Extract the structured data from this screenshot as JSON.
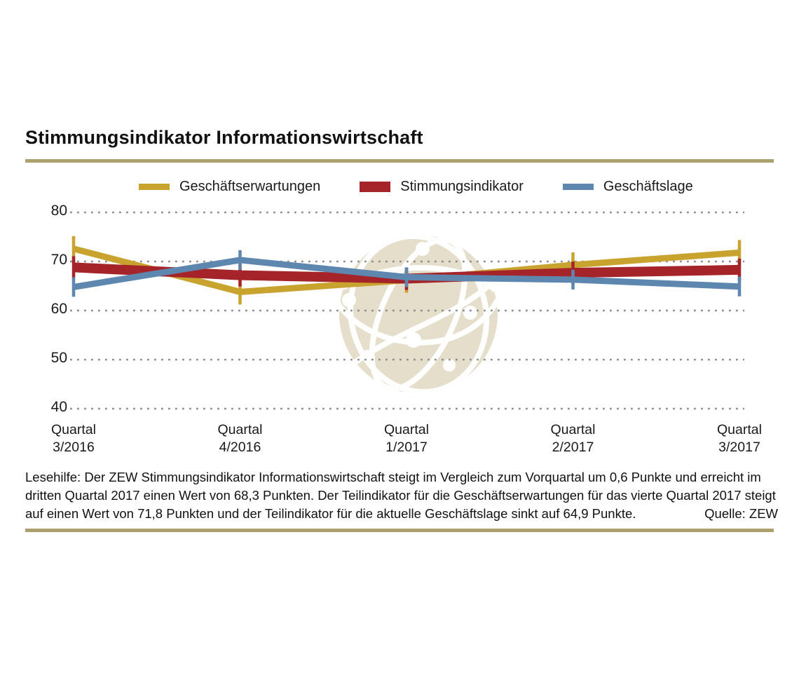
{
  "title": "Stimmungsindikator Informationswirtschaft",
  "accent_rule_color": "#aba06e",
  "chart_data": {
    "type": "line",
    "title": "Stimmungsindikator Informationswirtschaft",
    "categories": [
      "Quartal 3/2016",
      "Quartal 4/2016",
      "Quartal 1/2017",
      "Quartal 2/2017",
      "Quartal 3/2017"
    ],
    "x_labels": [
      [
        "Quartal",
        "3/2016"
      ],
      [
        "Quartal",
        "4/2016"
      ],
      [
        "Quartal",
        "1/2017"
      ],
      [
        "Quartal",
        "2/2017"
      ],
      [
        "Quartal",
        "3/2017"
      ]
    ],
    "series": [
      {
        "name": "Geschäftserwartungen",
        "color": "#c8a32e",
        "values": [
          72.6,
          63.8,
          66.2,
          69.3,
          71.8
        ]
      },
      {
        "name": "Stimmungsindikator",
        "color": "#a5242a",
        "values": [
          68.8,
          67.2,
          66.5,
          67.7,
          68.3
        ]
      },
      {
        "name": "Geschäftslage",
        "color": "#5e87b0",
        "values": [
          64.8,
          70.3,
          66.8,
          66.3,
          64.9
        ]
      }
    ],
    "y_ticks": [
      80,
      70,
      60,
      50,
      40
    ],
    "ylim": [
      40,
      82
    ],
    "xlabel": "",
    "ylabel": "",
    "grid": "dotted horizontal",
    "legend_position": "top",
    "marker": "vertical tick at each data point"
  },
  "footer": {
    "lines": [
      "Lesehilfe: Der ZEW Stimmungsindikator Informationswirtschaft steigt im Vergleich zum Vorquartal um 0,6 Punkte und erreicht im",
      "dritten Quartal 2017 einen Wert von 68,3 Punkten. Der Teilindikator für die Geschäftserwartungen für das vierte Quartal 2017 steigt",
      "auf einen Wert von 71,8 Punkten und der Teilindikator für die aktuelle Geschäftslage sinkt auf 64,9 Punkte."
    ],
    "source": "Quelle: ZEW"
  }
}
